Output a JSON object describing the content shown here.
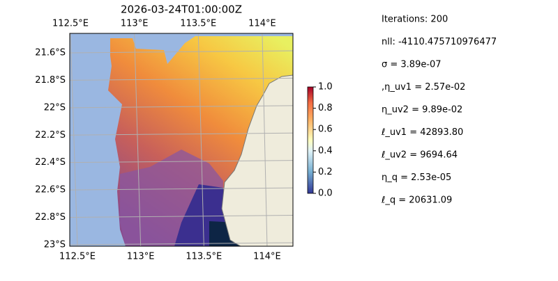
{
  "title": "2026-03-24T01:00:00Z",
  "map": {
    "xticks": [
      {
        "value": 112.5,
        "label": "112.5°E"
      },
      {
        "value": 113,
        "label": "113°E"
      },
      {
        "value": 113.5,
        "label": "113.5°E"
      },
      {
        "value": 114,
        "label": "114°E"
      }
    ],
    "yticks": [
      {
        "value": -21.6,
        "label": "21.6°S"
      },
      {
        "value": -21.8,
        "label": "21.8°S"
      },
      {
        "value": -22,
        "label": "22°S"
      },
      {
        "value": -22.2,
        "label": "22.2°S"
      },
      {
        "value": -22.4,
        "label": "22.4°S"
      },
      {
        "value": -22.6,
        "label": "22.6°S"
      },
      {
        "value": -22.8,
        "label": "22.8°S"
      },
      {
        "value": -23,
        "label": "23°S"
      }
    ]
  },
  "colorbar": {
    "lim": [
      0,
      1
    ],
    "ticks": [
      {
        "value": 0,
        "label": "0.0"
      },
      {
        "value": 0.2,
        "label": "0.2"
      },
      {
        "value": 0.4,
        "label": "0.4"
      },
      {
        "value": 0.6,
        "label": "0.6"
      },
      {
        "value": 0.8,
        "label": "0.8"
      },
      {
        "value": 1,
        "label": "1.0"
      }
    ]
  },
  "stats": [
    "Iterations: 200",
    "nll: -4110.475710976477",
    "σ = 3.89e-07",
    ",η_uv1 = 2.57e-02",
    "η_uv2 = 9.89e-02",
    "ℓ_uv1 = 42893.80",
    "ℓ_uv2 = 9694.64",
    "η_q = 2.53e-05",
    "ℓ_q = 20631.09"
  ]
}
